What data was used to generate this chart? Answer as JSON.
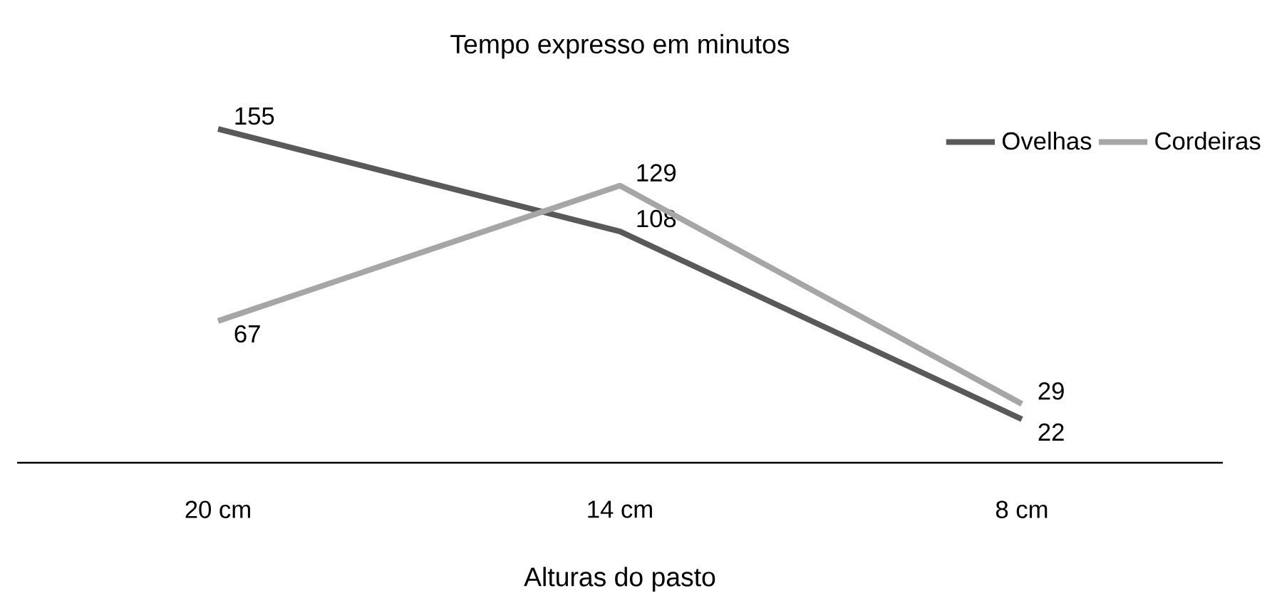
{
  "chart_data": {
    "type": "line",
    "title": "Tempo expresso em minutos",
    "xlabel": "Alturas do pasto",
    "categories": [
      "20 cm",
      "14 cm",
      "8 cm"
    ],
    "series": [
      {
        "name": "Ovelhas",
        "color": "#595959",
        "values": [
          155,
          108,
          22
        ]
      },
      {
        "name": "Cordeiras",
        "color": "#a6a6a6",
        "values": [
          67,
          129,
          29
        ]
      }
    ],
    "data_labels": true,
    "legend": "top right",
    "grid": false,
    "marker": "none",
    "line_style": "solid"
  }
}
